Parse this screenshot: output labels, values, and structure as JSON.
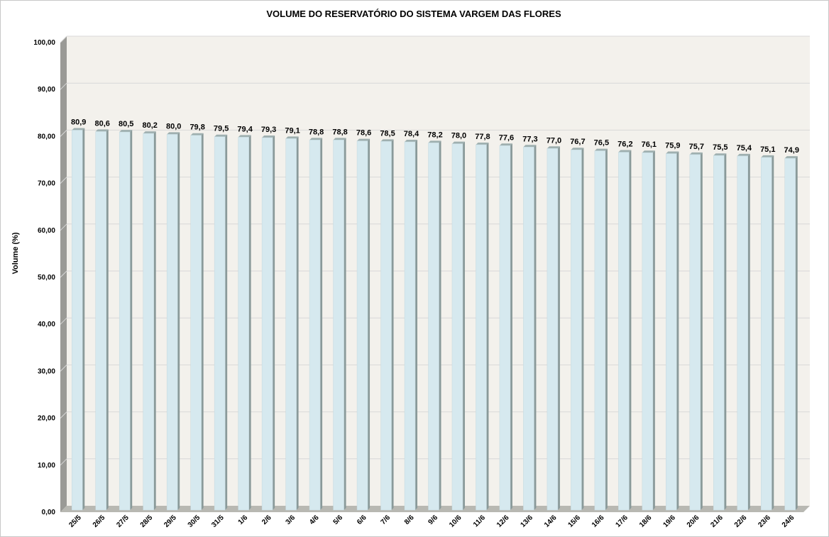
{
  "chart_data": {
    "type": "bar",
    "title": "VOLUME DO RESERVATÓRIO DO SISTEMA VARGEM DAS FLORES",
    "xlabel": "",
    "ylabel": "Volume (%)",
    "ylim": [
      0,
      100
    ],
    "yticks": [
      "0,00",
      "10,00",
      "20,00",
      "30,00",
      "40,00",
      "50,00",
      "60,00",
      "70,00",
      "80,00",
      "90,00",
      "100,00"
    ],
    "grid": true,
    "legend": "none",
    "categories": [
      "25/5",
      "26/5",
      "27/5",
      "28/5",
      "29/5",
      "30/5",
      "31/5",
      "1/6",
      "2/6",
      "3/6",
      "4/6",
      "5/6",
      "6/6",
      "7/6",
      "8/6",
      "9/6",
      "10/6",
      "11/6",
      "12/6",
      "13/6",
      "14/6",
      "15/6",
      "16/6",
      "17/6",
      "18/6",
      "19/6",
      "20/6",
      "21/6",
      "22/6",
      "23/6",
      "24/6"
    ],
    "values": [
      80.9,
      80.6,
      80.5,
      80.2,
      80.0,
      79.8,
      79.5,
      79.4,
      79.3,
      79.1,
      78.8,
      78.8,
      78.6,
      78.5,
      78.4,
      78.2,
      78.0,
      77.8,
      77.6,
      77.3,
      77.0,
      76.7,
      76.5,
      76.2,
      76.1,
      75.9,
      75.7,
      75.5,
      75.4,
      75.1,
      74.9
    ],
    "value_labels": [
      "80,9",
      "80,6",
      "80,5",
      "80,2",
      "80,0",
      "79,8",
      "79,5",
      "79,4",
      "79,3",
      "79,1",
      "78,8",
      "78,8",
      "78,6",
      "78,5",
      "78,4",
      "78,2",
      "78,0",
      "77,8",
      "77,6",
      "77,3",
      "77,0",
      "76,7",
      "76,5",
      "76,2",
      "76,1",
      "75,9",
      "75,7",
      "75,5",
      "75,4",
      "75,1",
      "74,9"
    ],
    "colors": {
      "bar_front": "#d6e9ef",
      "bar_side": "#8a9a9a",
      "bar_top": "#9fb0b0",
      "plot_bg": "#f3f1ec",
      "wall": "#9a9a96",
      "floor": "#b8b8b2",
      "grid": "#d8d8d8"
    }
  }
}
